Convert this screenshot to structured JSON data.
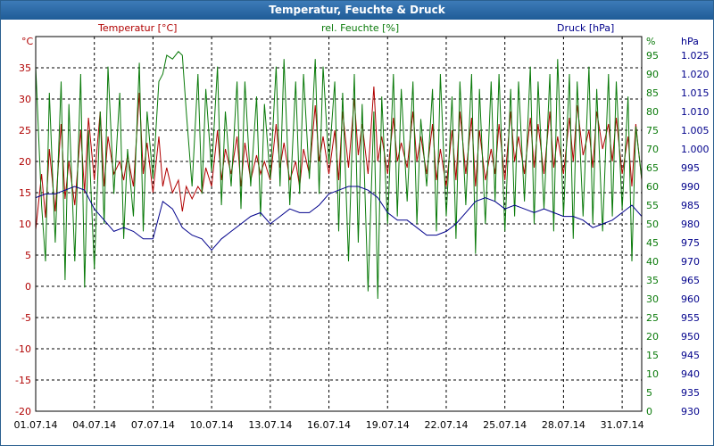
{
  "window": {
    "title": "Temperatur, Feuchte & Druck"
  },
  "chart_data": {
    "type": "line",
    "title": "Temperatur, Feuchte & Druck",
    "grid": true,
    "x_ticks": [
      "01.07.14",
      "04.07.14",
      "07.07.14",
      "10.07.14",
      "13.07.14",
      "16.07.14",
      "19.07.14",
      "22.07.14",
      "25.07.14",
      "28.07.14",
      "31.07.14"
    ],
    "x_range_days": [
      1,
      32
    ],
    "axes": {
      "temperature": {
        "label": "Temperatur [°C]",
        "unit": "°C",
        "range": [
          -20,
          40
        ],
        "ticks": [
          -20,
          -15,
          -10,
          -5,
          0,
          5,
          10,
          15,
          20,
          25,
          30,
          35
        ]
      },
      "humidity": {
        "label": "rel. Feuchte [%]",
        "unit": "%",
        "range": [
          0,
          100
        ],
        "ticks": [
          0,
          5,
          10,
          15,
          20,
          25,
          30,
          35,
          40,
          45,
          50,
          55,
          60,
          65,
          70,
          75,
          80,
          85,
          90,
          95
        ]
      },
      "pressure": {
        "label": "Druck [hPa]",
        "unit": "hPa",
        "range": [
          930,
          1030
        ],
        "ticks": [
          "930",
          "935",
          "940",
          "945",
          "950",
          "955",
          "960",
          "965",
          "970",
          "975",
          "980",
          "985",
          "990",
          "995",
          "1.000",
          "1.005",
          "1.010",
          "1.015",
          "1.020",
          "1.025"
        ]
      }
    },
    "colors": {
      "temperature": "#b00000",
      "humidity": "#0a7a0a",
      "pressure": "#00008b",
      "grid": "#000000"
    },
    "series": [
      {
        "name": "Temperatur [°C]",
        "axis": "temperature",
        "x": [
          1.0,
          1.3,
          1.5,
          1.7,
          2.0,
          2.3,
          2.5,
          2.7,
          3.0,
          3.3,
          3.5,
          3.7,
          4.0,
          4.3,
          4.5,
          4.7,
          5.0,
          5.3,
          5.5,
          5.7,
          6.0,
          6.3,
          6.5,
          6.7,
          7.0,
          7.3,
          7.5,
          7.7,
          8.0,
          8.3,
          8.5,
          8.7,
          9.0,
          9.3,
          9.5,
          9.7,
          10.0,
          10.3,
          10.5,
          10.7,
          11.0,
          11.3,
          11.5,
          11.7,
          12.0,
          12.3,
          12.5,
          12.7,
          13.0,
          13.3,
          13.5,
          13.7,
          14.0,
          14.3,
          14.5,
          14.7,
          15.0,
          15.3,
          15.5,
          15.7,
          16.0,
          16.3,
          16.5,
          16.7,
          17.0,
          17.3,
          17.5,
          17.7,
          18.0,
          18.3,
          18.5,
          18.7,
          19.0,
          19.3,
          19.5,
          19.7,
          20.0,
          20.3,
          20.5,
          20.7,
          21.0,
          21.3,
          21.5,
          21.7,
          22.0,
          22.3,
          22.5,
          22.7,
          23.0,
          23.3,
          23.5,
          23.7,
          24.0,
          24.3,
          24.5,
          24.7,
          25.0,
          25.3,
          25.5,
          25.7,
          26.0,
          26.3,
          26.5,
          26.7,
          27.0,
          27.3,
          27.5,
          27.7,
          28.0,
          28.3,
          28.5,
          28.7,
          29.0,
          29.3,
          29.5,
          29.7,
          30.0,
          30.3,
          30.5,
          30.7,
          31.0,
          31.3,
          31.5,
          31.7,
          32.0
        ],
        "values": [
          9,
          18,
          11,
          22,
          12,
          26,
          14,
          20,
          13,
          25,
          15,
          27,
          17,
          28,
          16,
          24,
          18,
          20,
          17,
          21,
          16,
          31,
          18,
          23,
          15,
          24,
          16,
          19,
          15,
          17,
          12,
          16,
          14,
          16,
          15,
          19,
          16,
          25,
          17,
          22,
          18,
          24,
          16,
          23,
          17,
          21,
          18,
          20,
          17,
          26,
          19,
          23,
          17,
          20,
          16,
          22,
          18,
          29,
          20,
          24,
          18,
          25,
          17,
          28,
          19,
          30,
          21,
          26,
          18,
          32,
          20,
          24,
          18,
          27,
          20,
          23,
          19,
          28,
          20,
          24,
          18,
          26,
          17,
          22,
          16,
          25,
          17,
          28,
          18,
          27,
          16,
          25,
          17,
          22,
          18,
          26,
          17,
          28,
          20,
          24,
          18,
          27,
          19,
          26,
          18,
          28,
          19,
          24,
          18,
          27,
          20,
          29,
          21,
          25,
          19,
          28,
          22,
          26,
          20,
          27,
          18,
          24,
          16,
          26,
          17
        ]
      },
      {
        "name": "rel. Feuchte [%]",
        "axis": "humidity",
        "x": [
          1.0,
          1.3,
          1.5,
          1.7,
          2.0,
          2.3,
          2.5,
          2.7,
          3.0,
          3.3,
          3.5,
          3.7,
          4.0,
          4.3,
          4.5,
          4.7,
          5.0,
          5.3,
          5.5,
          5.7,
          6.0,
          6.3,
          6.5,
          6.7,
          7.0,
          7.3,
          7.5,
          7.7,
          8.0,
          8.3,
          8.5,
          8.7,
          9.0,
          9.3,
          9.5,
          9.7,
          10.0,
          10.3,
          10.5,
          10.7,
          11.0,
          11.3,
          11.5,
          11.7,
          12.0,
          12.3,
          12.5,
          12.7,
          13.0,
          13.3,
          13.5,
          13.7,
          14.0,
          14.3,
          14.5,
          14.7,
          15.0,
          15.3,
          15.5,
          15.7,
          16.0,
          16.3,
          16.5,
          16.7,
          17.0,
          17.3,
          17.5,
          17.7,
          18.0,
          18.3,
          18.5,
          18.7,
          19.0,
          19.3,
          19.5,
          19.7,
          20.0,
          20.3,
          20.5,
          20.7,
          21.0,
          21.3,
          21.5,
          21.7,
          22.0,
          22.3,
          22.5,
          22.7,
          23.0,
          23.3,
          23.5,
          23.7,
          24.0,
          24.3,
          24.5,
          24.7,
          25.0,
          25.3,
          25.5,
          25.7,
          26.0,
          26.3,
          26.5,
          26.7,
          27.0,
          27.3,
          27.5,
          27.7,
          28.0,
          28.3,
          28.5,
          28.7,
          29.0,
          29.3,
          29.5,
          29.7,
          30.0,
          30.3,
          30.5,
          30.7,
          31.0,
          31.3,
          31.5,
          31.7,
          32.0
        ],
        "values": [
          92,
          55,
          40,
          85,
          45,
          88,
          35,
          82,
          40,
          90,
          33,
          75,
          38,
          80,
          50,
          92,
          58,
          85,
          46,
          70,
          52,
          93,
          48,
          80,
          62,
          88,
          90,
          95,
          94,
          96,
          95,
          80,
          60,
          90,
          58,
          86,
          64,
          92,
          55,
          80,
          60,
          88,
          54,
          88,
          60,
          84,
          52,
          82,
          62,
          92,
          60,
          94,
          55,
          88,
          58,
          90,
          62,
          94,
          58,
          92,
          66,
          88,
          48,
          85,
          40,
          90,
          45,
          82,
          32,
          80,
          30,
          84,
          50,
          90,
          52,
          86,
          56,
          88,
          50,
          78,
          60,
          86,
          48,
          90,
          52,
          84,
          46,
          88,
          55,
          90,
          42,
          86,
          50,
          88,
          56,
          90,
          48,
          86,
          52,
          88,
          56,
          92,
          50,
          88,
          54,
          90,
          48,
          94,
          52,
          90,
          46,
          88,
          52,
          92,
          50,
          86,
          48,
          90,
          52,
          88,
          54,
          84,
          40,
          76,
          62
        ]
      },
      {
        "name": "Druck [hPa]",
        "axis": "pressure",
        "x": [
          1.0,
          1.5,
          2.0,
          2.5,
          3.0,
          3.5,
          4.0,
          4.5,
          5.0,
          5.5,
          6.0,
          6.5,
          7.0,
          7.5,
          8.0,
          8.5,
          9.0,
          9.5,
          10.0,
          10.5,
          11.0,
          11.5,
          12.0,
          12.5,
          13.0,
          13.5,
          14.0,
          14.5,
          15.0,
          15.5,
          16.0,
          16.5,
          17.0,
          17.5,
          18.0,
          18.5,
          19.0,
          19.5,
          20.0,
          20.5,
          21.0,
          21.5,
          22.0,
          22.5,
          23.0,
          23.5,
          24.0,
          24.5,
          25.0,
          25.5,
          26.0,
          26.5,
          27.0,
          27.5,
          28.0,
          28.5,
          29.0,
          29.5,
          30.0,
          30.5,
          31.0,
          31.5,
          32.0
        ],
        "values": [
          987,
          988,
          988,
          989,
          990,
          989,
          984,
          981,
          978,
          979,
          978,
          976,
          976,
          986,
          984,
          979,
          977,
          976,
          973,
          976,
          978,
          980,
          982,
          983,
          980,
          982,
          984,
          983,
          983,
          985,
          988,
          989,
          990,
          990,
          989,
          987,
          983,
          981,
          981,
          979,
          977,
          977,
          978,
          980,
          983,
          986,
          987,
          986,
          984,
          985,
          984,
          983,
          984,
          983,
          982,
          982,
          981,
          979,
          980,
          981,
          983,
          985,
          982
        ]
      }
    ]
  }
}
